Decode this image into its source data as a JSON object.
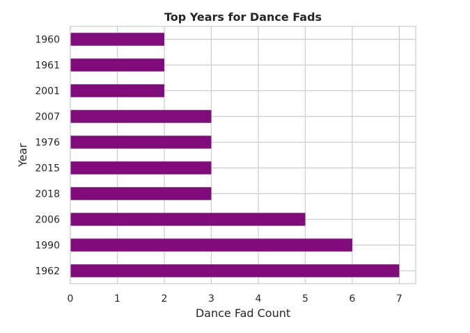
{
  "chart_data": {
    "type": "bar",
    "orientation": "horizontal",
    "title": "Top Years for Dance Fads",
    "xlabel": "Dance Fad Count",
    "ylabel": "Year",
    "categories": [
      "1960",
      "1961",
      "2001",
      "2007",
      "1976",
      "2015",
      "2018",
      "2006",
      "1990",
      "1962"
    ],
    "values": [
      2,
      2,
      2,
      3,
      3,
      3,
      3,
      5,
      6,
      7
    ],
    "xlim": [
      0,
      7.35
    ],
    "xticks": [
      0,
      1,
      2,
      3,
      4,
      5,
      6,
      7
    ],
    "grid": true,
    "bar_color": "#800c7c"
  }
}
